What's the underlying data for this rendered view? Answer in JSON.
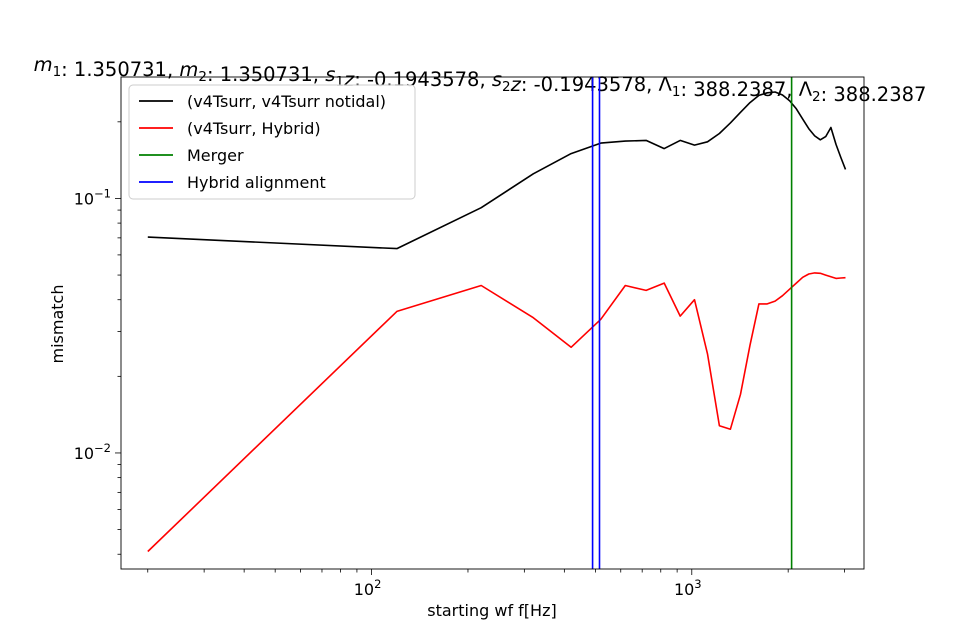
{
  "chart_data": {
    "type": "line",
    "title_parts": [
      {
        "t": "m",
        "i": true
      },
      {
        "t": "1",
        "sub": true
      },
      {
        "t": ": 1.350731, "
      },
      {
        "t": "m",
        "i": true
      },
      {
        "t": "2",
        "sub": true
      },
      {
        "t": ": 1.350731, "
      },
      {
        "t": "s",
        "i": true
      },
      {
        "t": "1",
        "sub": true
      },
      {
        "t": "z",
        "i": true
      },
      {
        "t": ": -0.1943578, "
      },
      {
        "t": "s",
        "i": true
      },
      {
        "t": "2",
        "sub": true
      },
      {
        "t": "z",
        "i": true
      },
      {
        "t": ": -0.1943578, "
      },
      {
        "t": "Λ"
      },
      {
        "t": "1",
        "sub": true
      },
      {
        "t": ": 388.2387, "
      },
      {
        "t": "Λ"
      },
      {
        "t": "2",
        "sub": true
      },
      {
        "t": ": 388.2387"
      }
    ],
    "xlabel": "starting wf f[Hz]",
    "ylabel": "mismatch",
    "xscale": "log",
    "yscale": "log",
    "xlim": [
      16.5,
      3450
    ],
    "ylim": [
      0.0035,
      0.3
    ],
    "grid": false,
    "legend_placement": "upper-left",
    "xticks": [
      {
        "value": 100,
        "base": "10",
        "exp": "2"
      },
      {
        "value": 1000,
        "base": "10",
        "exp": "3"
      }
    ],
    "yticks": [
      {
        "value": 0.01,
        "base": "10",
        "exp": "−2"
      },
      {
        "value": 0.1,
        "base": "10",
        "exp": "−1"
      }
    ],
    "series": [
      {
        "name": "(v4Tsurr, v4Tsurr notidal)",
        "color": "#000000",
        "x": [
          20,
          120,
          220,
          320,
          420,
          520,
          620,
          720,
          820,
          920,
          1020,
          1120,
          1220,
          1320,
          1420,
          1520,
          1620,
          1720,
          1820,
          1920,
          2020,
          2120,
          2220,
          2320,
          2420,
          2520,
          2620,
          2720,
          2820,
          2920,
          3020
        ],
        "y": [
          0.0705,
          0.0635,
          0.092,
          0.125,
          0.15,
          0.165,
          0.168,
          0.169,
          0.157,
          0.169,
          0.162,
          0.167,
          0.18,
          0.198,
          0.218,
          0.238,
          0.254,
          0.26,
          0.262,
          0.255,
          0.242,
          0.225,
          0.205,
          0.188,
          0.176,
          0.17,
          0.175,
          0.19,
          0.163,
          0.145,
          0.13
        ]
      },
      {
        "name": "(v4Tsurr, Hybrid)",
        "color": "#ff0000",
        "x": [
          20,
          120,
          220,
          320,
          420,
          520,
          620,
          720,
          820,
          920,
          1020,
          1120,
          1220,
          1320,
          1420,
          1520,
          1620,
          1720,
          1820,
          1920,
          2020,
          2120,
          2220,
          2320,
          2420,
          2520,
          2620,
          2720,
          2820,
          2920,
          3020
        ],
        "y": [
          0.0041,
          0.036,
          0.0455,
          0.034,
          0.026,
          0.0335,
          0.0455,
          0.0435,
          0.0465,
          0.0345,
          0.04,
          0.0245,
          0.0128,
          0.0124,
          0.017,
          0.0265,
          0.0385,
          0.0385,
          0.0395,
          0.0415,
          0.044,
          0.0465,
          0.049,
          0.0505,
          0.051,
          0.0508,
          0.05,
          0.0492,
          0.0485,
          0.0487,
          0.0488
        ]
      },
      {
        "name": "Merger",
        "color": "#008000",
        "vline": 2050
      },
      {
        "name": "Hybrid alignment",
        "color": "#0000ff",
        "vline": [
          490,
          515
        ]
      }
    ]
  }
}
